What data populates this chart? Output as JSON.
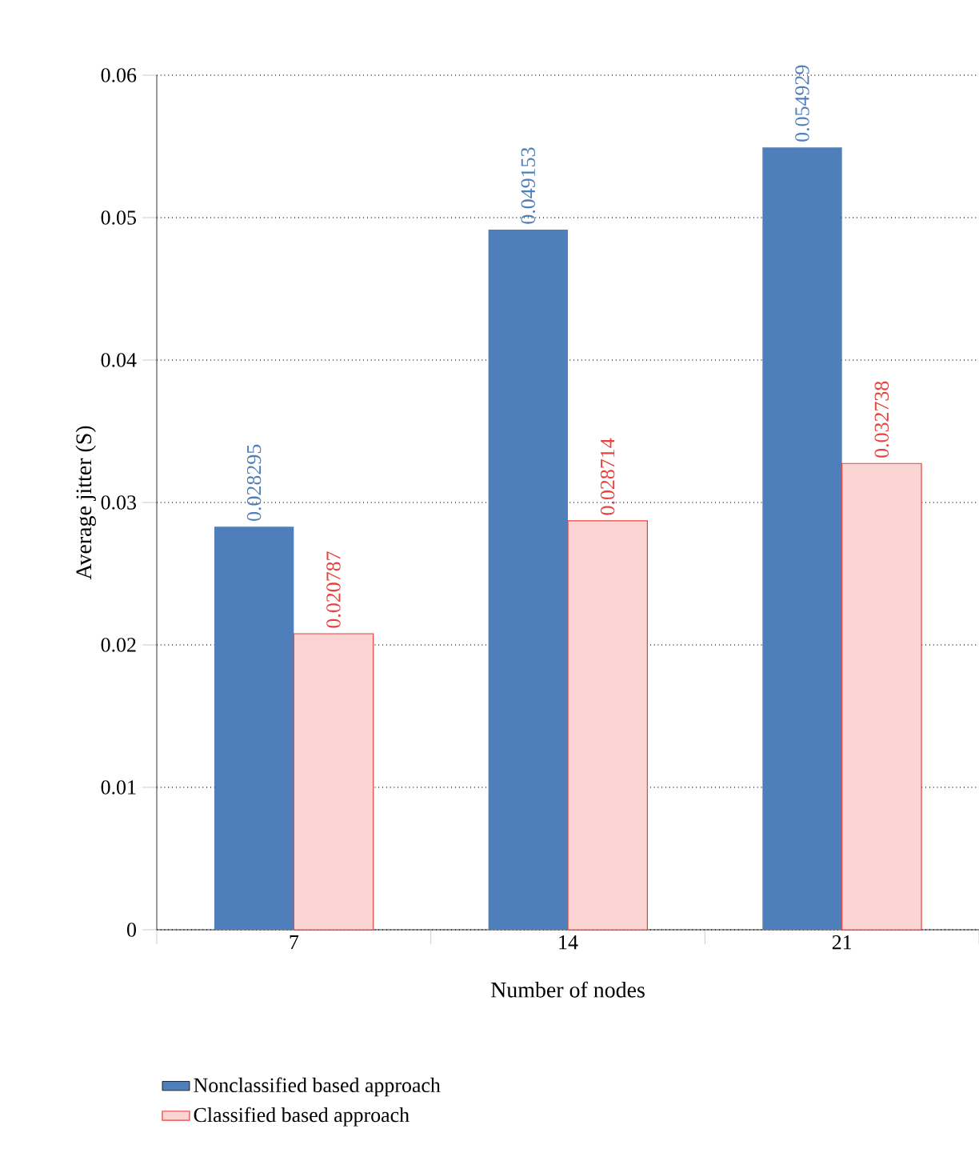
{
  "chart_data": {
    "type": "bar",
    "xlabel": "Number of nodes",
    "ylabel": "Average jitter (S)",
    "categories": [
      "7",
      "14",
      "21"
    ],
    "series": [
      {
        "name": "Nonclassified based approach",
        "color": "#4f7fba",
        "values": [
          0.028295,
          0.049153,
          0.054929
        ]
      },
      {
        "name": "Classified based approach",
        "color": "#e8413c",
        "values": [
          0.020787,
          0.028714,
          0.032738
        ]
      }
    ],
    "ylim": [
      0,
      0.06
    ],
    "yticks": [
      0,
      0.01,
      0.02,
      0.03,
      0.04,
      0.05,
      0.06
    ],
    "grid": "y",
    "legend": "bottom",
    "data_labels": true
  }
}
